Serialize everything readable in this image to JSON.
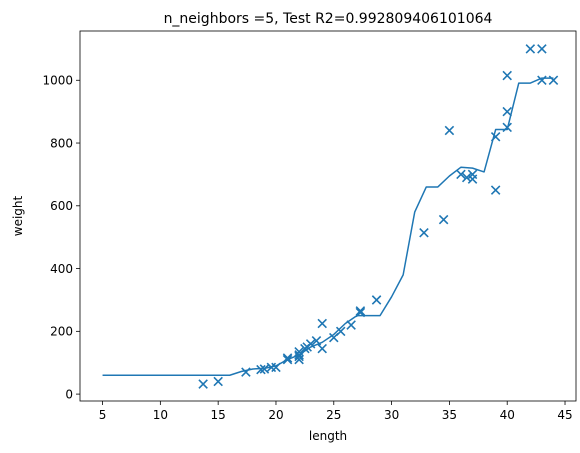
{
  "chart_data": {
    "type": "scatter",
    "title": "n_neighbors =5, Test R2=0.992809406101064",
    "xlabel": "length",
    "ylabel": "weight",
    "xlim": [
      3.05,
      45.95
    ],
    "ylim": [
      -22,
      1157
    ],
    "xticks": [
      5,
      10,
      15,
      20,
      25,
      30,
      35,
      40,
      45
    ],
    "yticks": [
      0,
      200,
      400,
      600,
      800,
      1000
    ],
    "xtick_labels": [
      "5",
      "10",
      "15",
      "20",
      "25",
      "30",
      "35",
      "40",
      "45"
    ],
    "ytick_labels": [
      "0",
      "200",
      "400",
      "600",
      "800",
      "1000"
    ],
    "grid": false,
    "color": "#1f77b4",
    "scatter": {
      "marker": "x",
      "points": [
        [
          13.7,
          32
        ],
        [
          15.0,
          40
        ],
        [
          17.4,
          70
        ],
        [
          18.7,
          78
        ],
        [
          19.0,
          80
        ],
        [
          19.6,
          85
        ],
        [
          20.0,
          85
        ],
        [
          21.0,
          110
        ],
        [
          21.0,
          115
        ],
        [
          22.0,
          110
        ],
        [
          22.0,
          120
        ],
        [
          22.0,
          125
        ],
        [
          22.0,
          135
        ],
        [
          22.5,
          145
        ],
        [
          22.7,
          150
        ],
        [
          23.0,
          160
        ],
        [
          23.5,
          170
        ],
        [
          24.0,
          145
        ],
        [
          24.0,
          225
        ],
        [
          25.0,
          180
        ],
        [
          25.6,
          200
        ],
        [
          26.5,
          220
        ],
        [
          27.3,
          265
        ],
        [
          27.3,
          260
        ],
        [
          28.7,
          300
        ],
        [
          32.8,
          514
        ],
        [
          34.5,
          556
        ],
        [
          35.0,
          840
        ],
        [
          36.0,
          700
        ],
        [
          36.5,
          690
        ],
        [
          37.0,
          700
        ],
        [
          37.0,
          685
        ],
        [
          39.0,
          820
        ],
        [
          39.0,
          650
        ],
        [
          40.0,
          1015
        ],
        [
          40.0,
          900
        ],
        [
          40.0,
          850
        ],
        [
          42.0,
          1100
        ],
        [
          43.0,
          1100
        ],
        [
          43.0,
          1000
        ],
        [
          44.0,
          1000
        ]
      ]
    },
    "line": {
      "x": [
        5.0,
        16.0,
        17.0,
        18.0,
        19.0,
        20.0,
        21.0,
        22.0,
        23.0,
        24.0,
        25.0,
        26.0,
        27.0,
        28.0,
        29.0,
        30.0,
        31.0,
        32.0,
        33.0,
        34.0,
        35.0,
        36.0,
        37.0,
        38.0,
        39.0,
        40.0,
        41.0,
        42.0,
        43.0,
        44.0
      ],
      "y": [
        60,
        60,
        72,
        80,
        82,
        90,
        110,
        125,
        150,
        165,
        190,
        225,
        250,
        250,
        250,
        310,
        380,
        580,
        660,
        660,
        695,
        723,
        720,
        708,
        843,
        843,
        991,
        991,
        1007,
        1007
      ]
    }
  }
}
